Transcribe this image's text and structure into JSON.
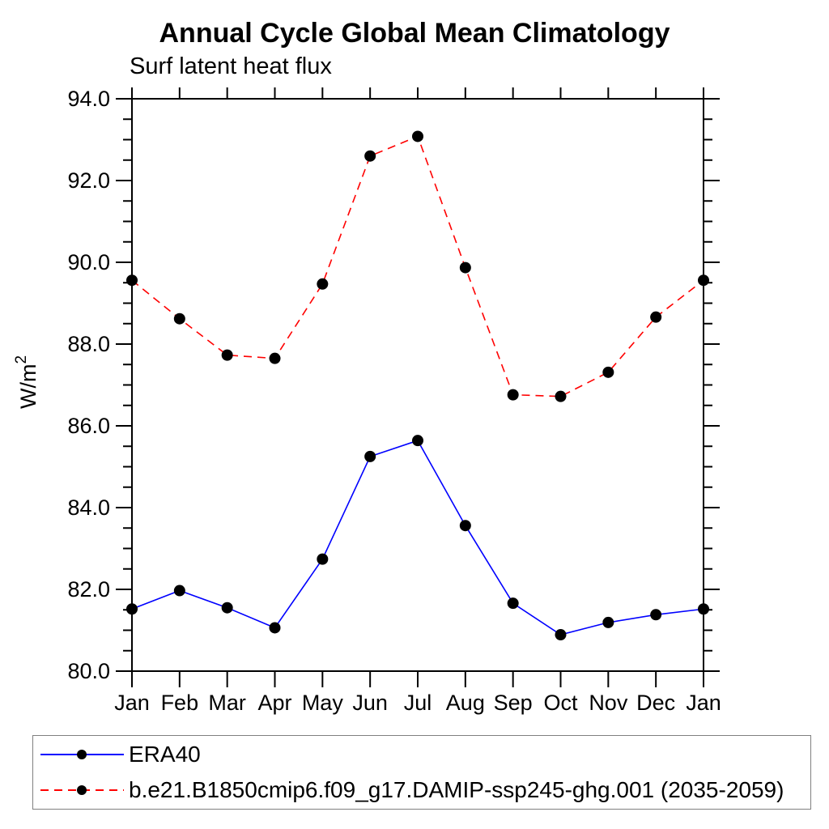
{
  "chart_data": {
    "type": "line",
    "title": "Annual Cycle Global Mean Climatology",
    "subtitle": "Surf latent heat flux",
    "ylabel": "W/m²",
    "ylabel_base": "W/m",
    "ylabel_exponent": "2",
    "xlabel": "",
    "categories": [
      "Jan",
      "Feb",
      "Mar",
      "Apr",
      "May",
      "Jun",
      "Jul",
      "Aug",
      "Sep",
      "Oct",
      "Nov",
      "Dec",
      "Jan"
    ],
    "ylim": [
      80.0,
      94.0
    ],
    "ytick_major_interval": 2.0,
    "ytick_minor_interval": 0.5,
    "ytick_labels": [
      "80.0",
      "82.0",
      "84.0",
      "86.0",
      "88.0",
      "90.0",
      "92.0",
      "94.0"
    ],
    "grid": false,
    "legend_position": "bottom-left-box",
    "marker": {
      "shape": "circle",
      "color": "#000000"
    },
    "axis_color": "#000000",
    "series": [
      {
        "name": "ERA40",
        "color": "#0000ff",
        "style": "solid",
        "values": [
          81.52,
          81.97,
          81.55,
          81.06,
          82.74,
          85.25,
          85.64,
          83.56,
          81.66,
          80.89,
          81.19,
          81.38,
          81.52
        ]
      },
      {
        "name": "b.e21.B1850cmip6.f09_g17.DAMIP-ssp245-ghg.001 (2035-2059)",
        "color": "#ff0000",
        "style": "dashed",
        "values": [
          89.56,
          88.62,
          87.73,
          87.65,
          89.47,
          92.6,
          93.08,
          89.87,
          86.76,
          86.72,
          87.31,
          88.66,
          89.56
        ]
      }
    ]
  }
}
